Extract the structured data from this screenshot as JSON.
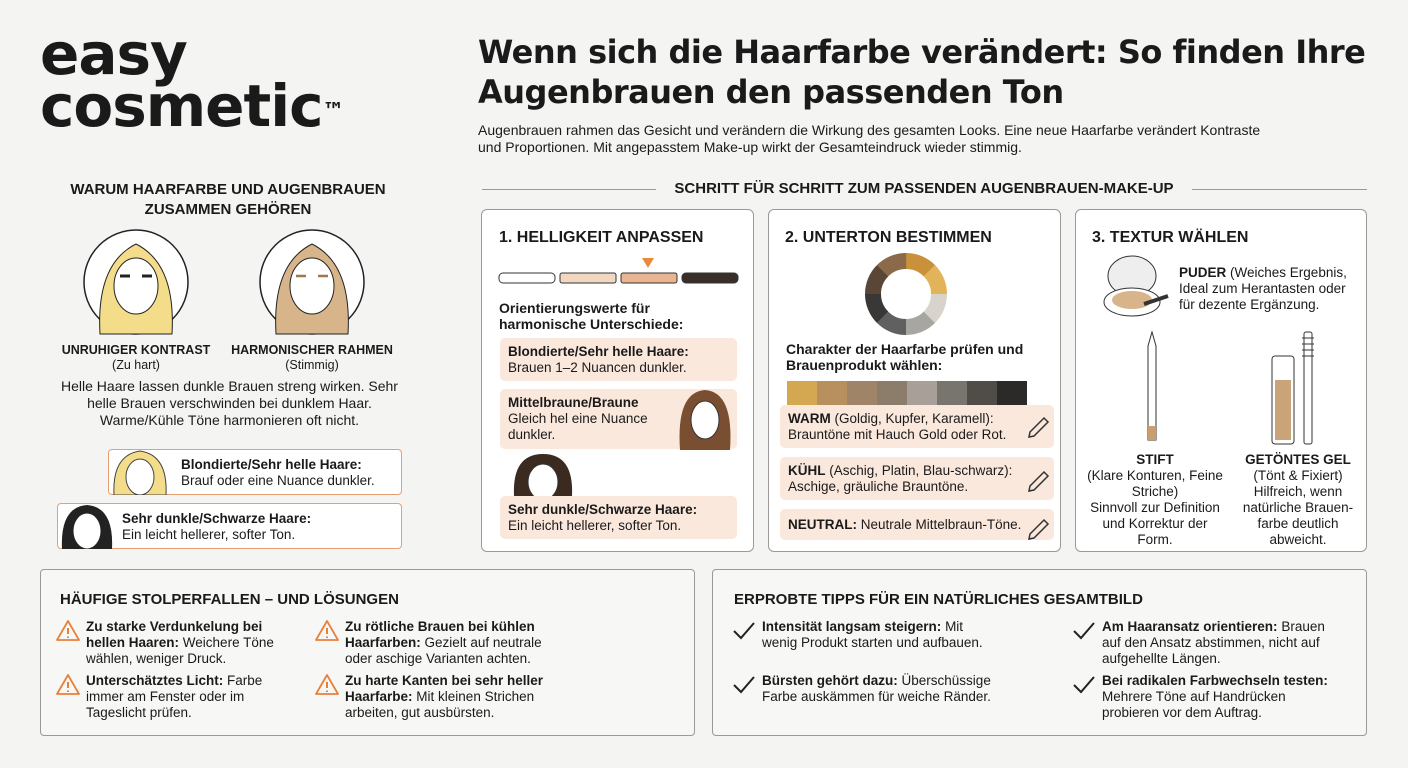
{
  "brand": {
    "line1": "easy",
    "line2": "cosmetic",
    "tm": "™"
  },
  "header": {
    "title": "Wenn sich die Haarfarbe verändert: So finden Ihre Augenbrauen den passenden Ton",
    "intro": "Augenbrauen rahmen das Gesicht und verändern die Wirkung des gesamten Looks. Eine neue Haarfarbe verändert Kontraste und Proportionen. Mit angepasstem Make-up wirkt der Gesamteindruck wieder stimmig."
  },
  "why": {
    "heading": "WARUM HAARFARBE UND AUGENBRAUEN ZUSAMMEN GEHÖREN",
    "faces": [
      {
        "label": "UNRUHIGER KONTRAST",
        "note": "(Zu hart)"
      },
      {
        "label": "HARMONISCHER RAHMEN",
        "note": "(Stimmig)"
      }
    ],
    "text": "Helle Haare lassen dunkle Brauen streng wirken. Sehr helle Brauen verschwinden bei dunklem Haar. Warme/Kühle Töne harmonieren oft nicht.",
    "tips": [
      {
        "bold": "Blondierte/Sehr helle Haare:",
        "text": "Brauf oder eine Nuance dunkler."
      },
      {
        "bold": "Sehr dunkle/Schwarze Haare:",
        "text": "Ein leicht hellerer, softer Ton."
      }
    ]
  },
  "steps": {
    "heading": "SCHRITT FÜR SCHRITT ZUM PASSENDEN AUGENBRAUEN-MAKE-UP",
    "step1": {
      "title": "1. HELLIGKEIT ANPASSEN",
      "subtitle": "Orientierungswerte für harmonische Unterschiede:",
      "items": [
        {
          "bold": "Blondierte/Sehr helle Haare:",
          "text": "Brauen 1–2 Nuancen dunkler."
        },
        {
          "bold": "Mittelbraune/Braune",
          "text": "Gleich hel eine Nuance dunkler."
        },
        {
          "bold": "Sehr dunkle/Schwarze Haare:",
          "text": "Ein leicht hellerer, softer Ton."
        }
      ]
    },
    "step2": {
      "title": "2. UNTERTON BESTIMMEN",
      "subtitle": "Charakter der Haarfarbe prüfen und Brauenprodukt wählen:",
      "items": [
        {
          "bold": "WARM",
          "text": "(Goldig, Kupfer, Karamell): Brauntöne mit Hauch Gold oder Rot."
        },
        {
          "bold": "KÜHL",
          "text": "(Aschig, Platin, Blau-schwarz): Aschige, gräuliche Brauntöne."
        },
        {
          "bold": "NEUTRAL:",
          "text": "Neutrale Mittelbraun-Töne."
        }
      ]
    },
    "step3": {
      "title": "3. TEXTUR WÄHLEN",
      "puder": {
        "bold": "PUDER",
        "text": "(Weiches Ergebnis, Ideal zum Herantasten oder für dezente Ergänzung."
      },
      "stift": {
        "label": "STIFT",
        "note": "(Klare Konturen, Feine Striche)",
        "text": "Sinnvoll zur Definition und Korrektur der Form."
      },
      "gel": {
        "label": "GETÖNTES GEL",
        "note": "(Tönt & Fixiert)",
        "text": "Hilfreich, wenn natürliche Brauen-farbe deutlich abweicht."
      }
    }
  },
  "pitfalls": {
    "heading": "HÄUFIGE STOLPERFALLEN – UND LÖSUNGEN",
    "items": [
      {
        "bold": "Zu starke Verdunkelung bei hellen Haaren:",
        "text": "Weichere Töne wählen, weniger Druck."
      },
      {
        "bold": "Zu rötliche Brauen bei kühlen Haarfarben:",
        "text": "Gezielt auf neutrale oder aschige Varianten achten."
      },
      {
        "bold": "Unterschätztes Licht:",
        "text": "Farbe immer am Fenster oder im Tageslicht prüfen."
      },
      {
        "bold": "Zu harte Kanten bei sehr heller Haarfarbe:",
        "text": "Mit kleinen Strichen arbeiten, gut ausbürsten."
      }
    ]
  },
  "tips": {
    "heading": "ERPROBTE TIPPS FÜR EIN NATÜRLICHES GESAMTBILD",
    "items": [
      {
        "bold": "Intensität langsam steigern:",
        "text": "Mit wenig Produkt starten und aufbauen."
      },
      {
        "bold": "Am Haaransatz orientieren:",
        "text": "Brauen auf den Ansatz abstimmen, nicht auf aufgehellte Längen."
      },
      {
        "bold": "Bürsten gehört dazu:",
        "text": "Überschüssige Farbe auskämmen für weiche Ränder."
      },
      {
        "bold": "Bei radikalen Farbwechseln testen:",
        "text": "Mehrere Töne auf Handrücken probieren vor dem Auftrag."
      }
    ]
  }
}
